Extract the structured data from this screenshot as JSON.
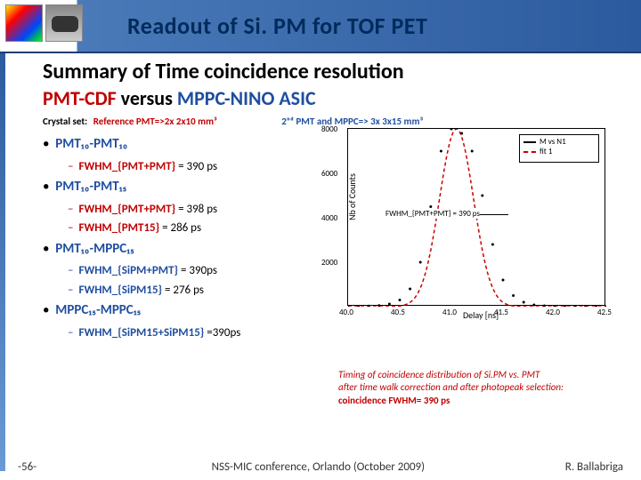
{
  "header": {
    "title": "Readout of Si. PM for TOF PET"
  },
  "summary": {
    "title": "Summary of Time coincidence resolution",
    "subtitle_red": "PMT-CDF",
    "subtitle_black": "versus",
    "subtitle_blue": "MPPC-NINO ASIC"
  },
  "crystal_set": {
    "label": "Crystal set:",
    "ref": "Reference PMT=>2x 2x10 mm³",
    "second": "2ⁿᵈ PMT and MPPC=> 3x 3x15 mm³"
  },
  "bullets": [
    {
      "main": "PMT₁₀-PMT₁₀",
      "subs": [
        {
          "type": "pmt",
          "label": "FWHM_{PMT+PMT}",
          "value": "= 390 ps"
        }
      ]
    },
    {
      "main": "PMT₁₀-PMT₁₅",
      "subs": [
        {
          "type": "pmt",
          "label": "FWHM_{PMT+PMT}",
          "value": "= 398 ps"
        },
        {
          "type": "pmt",
          "label": "FWHM_{PMT15}",
          "value": "= 286 ps"
        }
      ]
    },
    {
      "main": "PMT₁₀-MPPC₁₅",
      "subs": [
        {
          "type": "sipm",
          "label": "FWHM_{SiPM+PMT}",
          "value": "= 390ps"
        },
        {
          "type": "sipm",
          "label": "FWHM_{SiPM15}",
          "value": "= 276 ps"
        }
      ]
    },
    {
      "main": "MPPC₁₅-MPPC₁₅",
      "subs": [
        {
          "type": "sipm",
          "label": "FWHM_{SiPM15+SiPM15}",
          "value": "=390ps"
        }
      ]
    }
  ],
  "chart": {
    "type": "line-scatter",
    "xlim": [
      40,
      42.5
    ],
    "xtick_step": 0.5,
    "ylim": [
      0,
      8000
    ],
    "ytick_step": 2000,
    "xlabel": "Delay [ns]",
    "ylabel": "Nb of Counts",
    "background_color": "#ffffff",
    "data_color": "#000000",
    "fit_color": "#cc0000",
    "fit_style": "dashed",
    "legend": [
      "M vs N1",
      "fit 1"
    ],
    "fwhm_annotation": "FWHM_{PMT+PMT} = 390 ps",
    "x_data": [
      40.0,
      40.1,
      40.2,
      40.3,
      40.4,
      40.5,
      40.6,
      40.7,
      40.8,
      40.9,
      41.0,
      41.1,
      41.2,
      41.3,
      41.4,
      41.5,
      41.6,
      41.7,
      41.8,
      41.9,
      42.0,
      42.1,
      42.2,
      42.3,
      42.4,
      42.5
    ],
    "y_data": [
      10,
      15,
      30,
      50,
      120,
      300,
      800,
      2000,
      4500,
      7000,
      8000,
      7800,
      7000,
      5000,
      2800,
      1200,
      500,
      200,
      80,
      40,
      20,
      12,
      10,
      8,
      6,
      5
    ],
    "peak_x": 41.05,
    "sigma": 0.165,
    "amplitude": 8000
  },
  "caption": {
    "line1": "Timing of coincidence distribution of Si.PM vs. PMT",
    "line2": "after time walk correction and after photopeak selection:",
    "line3": "coincidence  FWHM= 390 ps"
  },
  "footer": {
    "pagenum": "-56-",
    "conf": "NSS-MIC conference, Orlando (October 2009)",
    "author": "R. Ballabriga"
  },
  "colors": {
    "header_grad_start": "#4a7ab8",
    "header_grad_end": "#2c5a9e",
    "red": "#c00000",
    "blue": "#1f4e9f",
    "black": "#000000"
  }
}
